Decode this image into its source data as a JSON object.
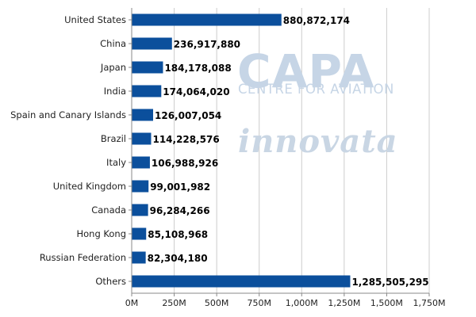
{
  "chart_data": {
    "type": "bar",
    "orientation": "horizontal",
    "categories": [
      "United States",
      "China",
      "Japan",
      "India",
      "Spain and Canary Islands",
      "Brazil",
      "Italy",
      "United Kingdom",
      "Canada",
      "Hong Kong",
      "Russian Federation",
      "Others"
    ],
    "values": [
      880872174,
      236917880,
      184178088,
      174064020,
      126007054,
      114228576,
      106988926,
      99001982,
      96284266,
      85108968,
      82304180,
      1285505295
    ],
    "value_labels": [
      "880,872,174",
      "236,917,880",
      "184,178,088",
      "174,064,020",
      "126,007,054",
      "114,228,576",
      "106,988,926",
      "99,001,982",
      "96,284,266",
      "85,108,968",
      "82,304,180",
      "1,285,505,295"
    ],
    "xlim": [
      0,
      1750000000
    ],
    "x_ticks": [
      0,
      250000000,
      500000000,
      750000000,
      1000000000,
      1250000000,
      1500000000,
      1750000000
    ],
    "x_tick_labels": [
      "0M",
      "250M",
      "500M",
      "750M",
      "1,000M",
      "1,250M",
      "1,500M",
      "1,750M"
    ],
    "title": "",
    "xlabel": "",
    "ylabel": "",
    "grid": true,
    "legend": "none",
    "bar_color": "#0b4f9c",
    "grid_color": "#cccccc"
  },
  "watermarks": {
    "capa_logo": "CAPA",
    "capa_tagline": "CENTRE FOR AVIATION",
    "innovata_logo": "innovata"
  }
}
